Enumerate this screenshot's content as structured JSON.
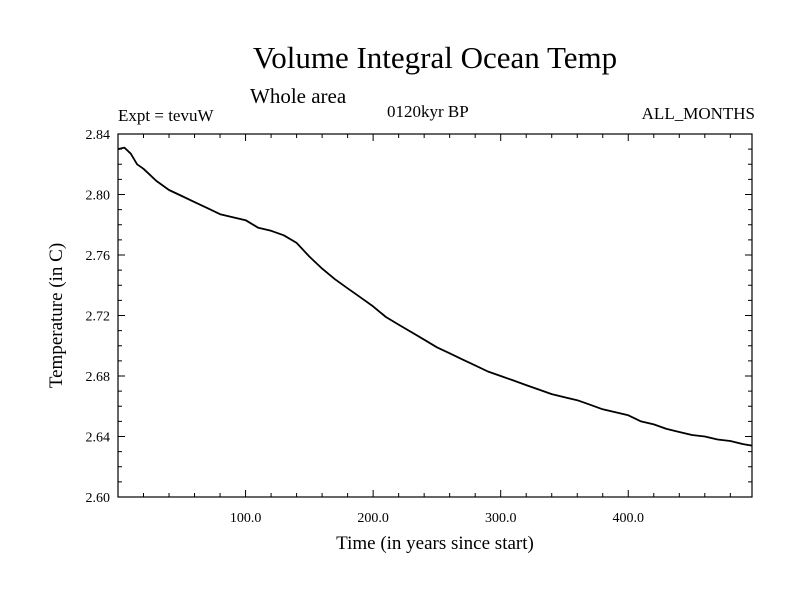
{
  "header": {
    "title": "Volume Integral Ocean Temp",
    "subtitle": "Whole area",
    "expt_label": "Expt = tevuW",
    "period_label": "0120kyr BP",
    "months_label": "ALL_MONTHS"
  },
  "chart_data": {
    "type": "line",
    "title": "Volume Integral Ocean Temp",
    "subtitle": "Whole area",
    "xlabel": "Time (in years since start)",
    "ylabel": "Temperature (in C)",
    "xlim": [
      0,
      497
    ],
    "ylim": [
      2.6,
      2.84
    ],
    "x_ticks": [
      100,
      200,
      300,
      400
    ],
    "x_tick_labels": [
      "100.0",
      "200.0",
      "300.0",
      "400.0"
    ],
    "y_ticks": [
      2.6,
      2.64,
      2.68,
      2.72,
      2.76,
      2.8,
      2.84
    ],
    "y_tick_labels": [
      "2.60",
      "2.64",
      "2.68",
      "2.72",
      "2.76",
      "2.80",
      "2.84"
    ],
    "grid": false,
    "series": [
      {
        "color": "#000000",
        "x": [
          0,
          5,
          10,
          15,
          20,
          25,
          30,
          35,
          40,
          45,
          50,
          60,
          70,
          80,
          90,
          100,
          110,
          120,
          130,
          140,
          150,
          160,
          170,
          180,
          190,
          200,
          210,
          220,
          230,
          240,
          250,
          260,
          270,
          280,
          290,
          300,
          310,
          320,
          330,
          340,
          350,
          360,
          370,
          380,
          390,
          400,
          410,
          420,
          430,
          440,
          450,
          460,
          470,
          480,
          490,
          497
        ],
        "y": [
          2.83,
          2.831,
          2.827,
          2.82,
          2.817,
          2.813,
          2.809,
          2.806,
          2.803,
          2.801,
          2.799,
          2.795,
          2.791,
          2.787,
          2.785,
          2.783,
          2.778,
          2.776,
          2.773,
          2.768,
          2.759,
          2.751,
          2.744,
          2.738,
          2.732,
          2.726,
          2.719,
          2.714,
          2.709,
          2.704,
          2.699,
          2.695,
          2.691,
          2.687,
          2.683,
          2.68,
          2.677,
          2.674,
          2.671,
          2.668,
          2.666,
          2.664,
          2.661,
          2.658,
          2.656,
          2.654,
          2.65,
          2.648,
          2.645,
          2.643,
          2.641,
          2.64,
          2.638,
          2.637,
          2.635,
          2.634
        ]
      }
    ]
  }
}
